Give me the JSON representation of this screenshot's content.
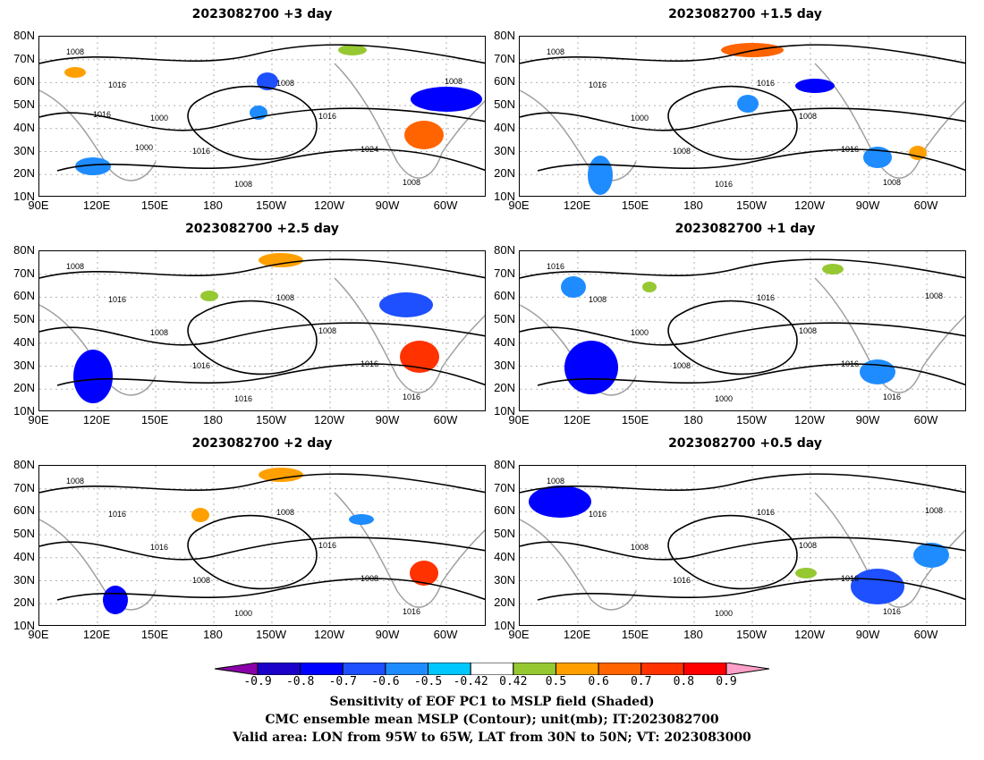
{
  "panels": [
    {
      "id": "p1",
      "title": "2023082700  +3 day"
    },
    {
      "id": "p2",
      "title": "2023082700  +1.5 day"
    },
    {
      "id": "p3",
      "title": "2023082700  +2.5 day"
    },
    {
      "id": "p4",
      "title": "2023082700  +1 day"
    },
    {
      "id": "p5",
      "title": "2023082700  +2 day"
    },
    {
      "id": "p6",
      "title": "2023082700  +0.5 day"
    }
  ],
  "axes": {
    "lat_labels": [
      "80N",
      "70N",
      "60N",
      "50N",
      "40N",
      "30N",
      "20N",
      "10N"
    ],
    "lon_labels": [
      "90E",
      "120E",
      "150E",
      "180",
      "150W",
      "120W",
      "90W",
      "60W"
    ]
  },
  "contour_labels": {
    "p1": [
      "1008",
      "1016",
      "1000",
      "1016",
      "1008",
      "1008",
      "1016",
      "1024",
      "1008",
      "1008",
      "1016",
      "1000"
    ],
    "p2": [
      "1008",
      "1016",
      "1000",
      "1008",
      "1016",
      "1016",
      "1008",
      "1016",
      "1008"
    ],
    "p3": [
      "1008",
      "1016",
      "1008",
      "1016",
      "1016",
      "1008",
      "1008",
      "1016",
      "1016"
    ],
    "p4": [
      "1016",
      "1008",
      "1000",
      "1008",
      "1000",
      "1016",
      "1008",
      "1016",
      "1016",
      "1008"
    ],
    "p5": [
      "1008",
      "1016",
      "1016",
      "1008",
      "1000",
      "1008",
      "1016",
      "1008",
      "1016"
    ],
    "p6": [
      "1008",
      "1016",
      "1008",
      "1016",
      "1000",
      "1016",
      "1008",
      "1016",
      "1016",
      "1008"
    ]
  },
  "colorbar": {
    "levels": [
      "-0.9",
      "-0.8",
      "-0.7",
      "-0.6",
      "-0.5",
      "-0.42",
      "0.42",
      "0.5",
      "0.6",
      "0.7",
      "0.8",
      "0.9"
    ],
    "colors": [
      "#8b00a8",
      "#1a00c8",
      "#0000ff",
      "#1e50ff",
      "#1e8cff",
      "#00c8ff",
      "#ffffff",
      "#96c832",
      "#ffa000",
      "#ff6400",
      "#ff3200",
      "#ff0000",
      "#ffa0c8"
    ]
  },
  "caption": {
    "line1": "Sensitivity of EOF PC1 to MSLP field (Shaded)",
    "line2": "CMC ensemble mean MSLP (Contour); unit(mb); IT:2023082700",
    "line3": "Valid area: LON from 95W to 65W, LAT from 30N to 50N; VT: 2023083000"
  }
}
